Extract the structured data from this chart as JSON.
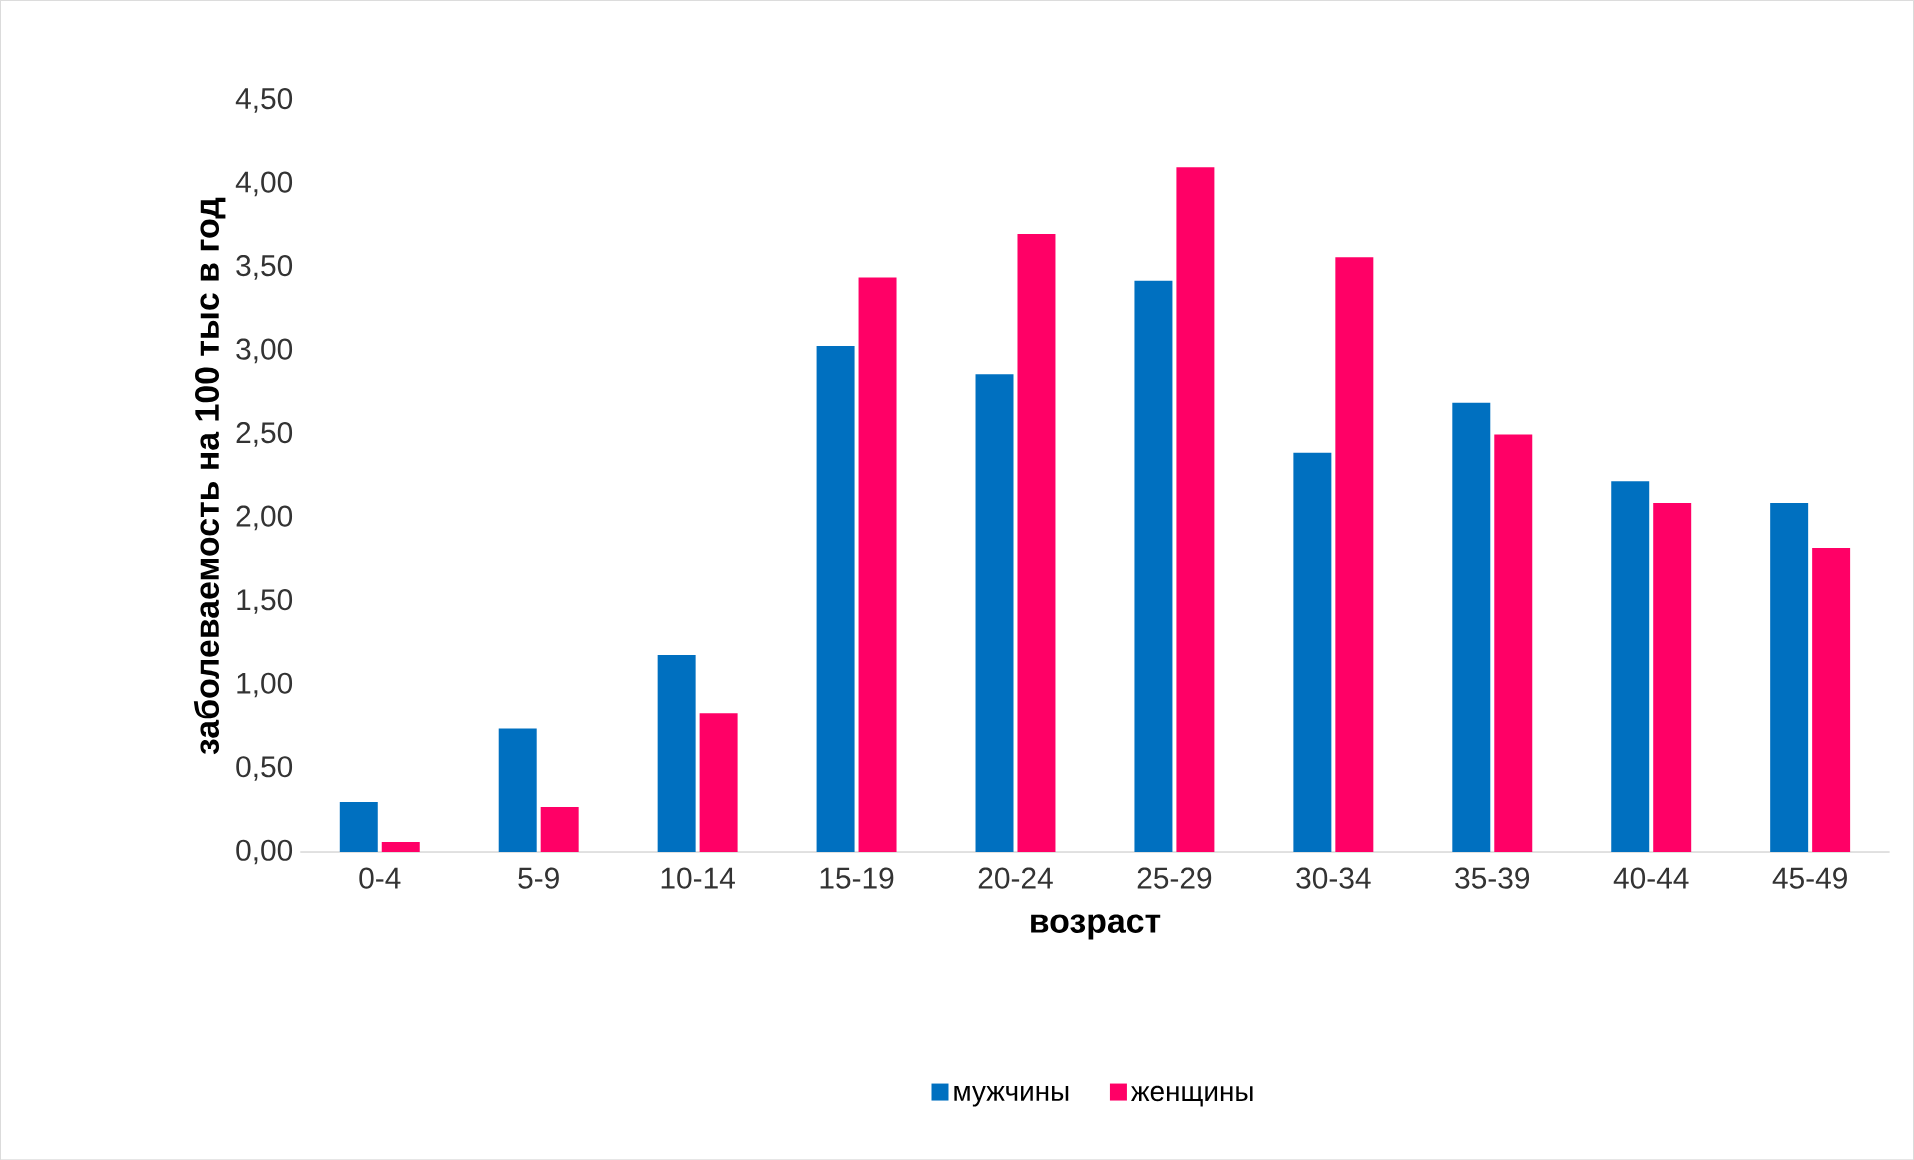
{
  "chart_data": {
    "type": "bar",
    "xlabel": "возраст",
    "ylabel": "заболеваемость на 100 тыс в год",
    "categories": [
      "0-4",
      "5-9",
      "10-14",
      "15-19",
      "20-24",
      "25-29",
      "30-34",
      "35-39",
      "40-44",
      "45-49"
    ],
    "series": [
      {
        "name": "мужчины",
        "color": "#0070c0",
        "values": [
          0.3,
          0.74,
          1.18,
          3.03,
          2.86,
          3.42,
          2.39,
          2.69,
          2.22,
          2.09
        ]
      },
      {
        "name": "женщины",
        "color": "#ff0066",
        "values": [
          0.06,
          0.27,
          0.83,
          3.44,
          3.7,
          4.1,
          3.56,
          2.5,
          2.09,
          1.82
        ]
      }
    ],
    "ylim": [
      0,
      4.5
    ],
    "yticks": [
      {
        "value": 0,
        "label": "0,00"
      },
      {
        "value": 0.5,
        "label": "0,50"
      },
      {
        "value": 1,
        "label": "1,00"
      },
      {
        "value": 1.5,
        "label": "1,50"
      },
      {
        "value": 2,
        "label": "2,00"
      },
      {
        "value": 2.5,
        "label": "2,50"
      },
      {
        "value": 3,
        "label": "3,00"
      },
      {
        "value": 3.5,
        "label": "3,50"
      },
      {
        "value": 4,
        "label": "4,00"
      },
      {
        "value": 4.5,
        "label": "4,50"
      }
    ],
    "grid": false,
    "legend": "bottom"
  }
}
